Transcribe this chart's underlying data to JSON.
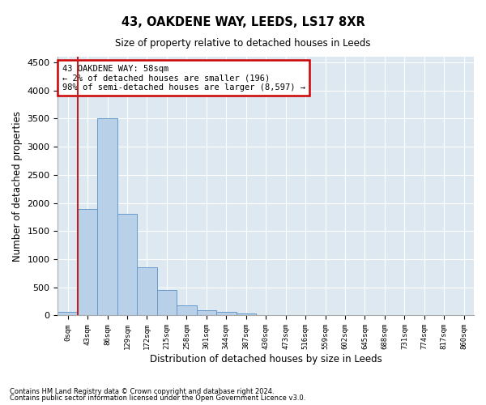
{
  "title": "43, OAKDENE WAY, LEEDS, LS17 8XR",
  "subtitle": "Size of property relative to detached houses in Leeds",
  "xlabel": "Distribution of detached houses by size in Leeds",
  "ylabel": "Number of detached properties",
  "annotation_title": "43 OAKDENE WAY: 58sqm",
  "annotation_line2": "← 2% of detached houses are smaller (196)",
  "annotation_line3": "98% of semi-detached houses are larger (8,597) →",
  "footer_line1": "Contains HM Land Registry data © Crown copyright and database right 2024.",
  "footer_line2": "Contains public sector information licensed under the Open Government Licence v3.0.",
  "bar_labels": [
    "0sqm",
    "43sqm",
    "86sqm",
    "129sqm",
    "172sqm",
    "215sqm",
    "258sqm",
    "301sqm",
    "344sqm",
    "387sqm",
    "430sqm",
    "473sqm",
    "516sqm",
    "559sqm",
    "602sqm",
    "645sqm",
    "688sqm",
    "731sqm",
    "774sqm",
    "817sqm",
    "860sqm"
  ],
  "bar_values": [
    70,
    1900,
    3500,
    1800,
    850,
    450,
    175,
    100,
    65,
    40,
    0,
    0,
    0,
    0,
    0,
    0,
    0,
    0,
    0,
    0,
    0
  ],
  "bar_color": "#b8d0e8",
  "bar_edge_color": "#6699cc",
  "vline_color": "#bb2222",
  "annotation_box_color": "#cc0000",
  "background_color": "#dde8f0",
  "ylim": [
    0,
    4600
  ],
  "yticks": [
    0,
    500,
    1000,
    1500,
    2000,
    2500,
    3000,
    3500,
    4000,
    4500
  ],
  "vline_bar_index": 1,
  "figsize": [
    6.0,
    5.0
  ],
  "dpi": 100
}
